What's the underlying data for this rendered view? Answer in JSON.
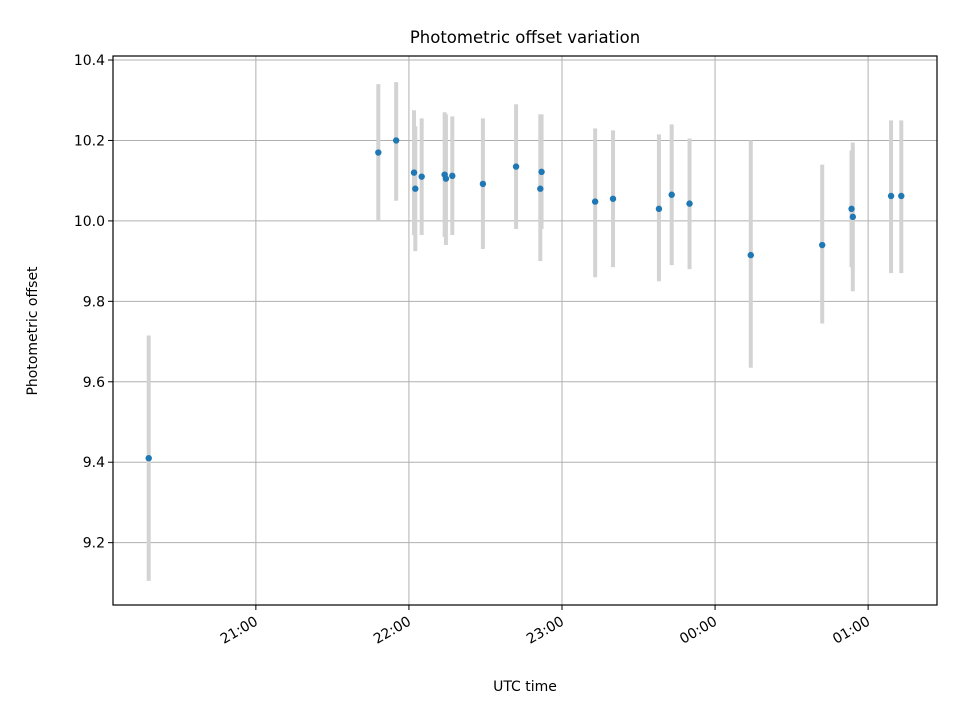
{
  "chart_data": {
    "type": "scatter",
    "title": "Photometric offset variation",
    "xlabel": "UTC time",
    "ylabel": "Photometric offset",
    "xlim": [
      "2000-01-01T20:04",
      "2000-01-02T01:27"
    ],
    "ylim": [
      9.045,
      10.41
    ],
    "x_is_time": true,
    "x_ticks": [
      {
        "label": "21:00",
        "value": "2000-01-01T21:00"
      },
      {
        "label": "22:00",
        "value": "2000-01-01T22:00"
      },
      {
        "label": "23:00",
        "value": "2000-01-01T23:00"
      },
      {
        "label": "00:00",
        "value": "2000-01-02T00:00"
      },
      {
        "label": "01:00",
        "value": "2000-01-02T01:00"
      }
    ],
    "y_ticks": [
      9.2,
      9.4,
      9.6,
      9.8,
      10.0,
      10.2,
      10.4
    ],
    "y_tick_labels": [
      "9.2",
      "9.4",
      "9.6",
      "9.8",
      "10.0",
      "10.2",
      "10.4"
    ],
    "grid": true,
    "legend": "none",
    "colors": {
      "point": "#1f77b4",
      "error_bar": "#d3d3d3",
      "grid": "#b0b0b0"
    },
    "points": [
      {
        "x": "2000-01-01T20:18:00",
        "y": 9.41,
        "y_low": 9.105,
        "y_high": 9.715
      },
      {
        "x": "2000-01-01T21:48:00",
        "y": 10.17,
        "y_low": 10.0,
        "y_high": 10.34
      },
      {
        "x": "2000-01-01T21:55:00",
        "y": 10.2,
        "y_low": 10.05,
        "y_high": 10.345
      },
      {
        "x": "2000-01-01T22:02:00",
        "y": 10.12,
        "y_low": 9.965,
        "y_high": 10.275
      },
      {
        "x": "2000-01-01T22:02:30",
        "y": 10.08,
        "y_low": 9.925,
        "y_high": 10.235
      },
      {
        "x": "2000-01-01T22:05:00",
        "y": 10.11,
        "y_low": 9.965,
        "y_high": 10.255
      },
      {
        "x": "2000-01-01T22:14:00",
        "y": 10.115,
        "y_low": 9.96,
        "y_high": 10.27
      },
      {
        "x": "2000-01-01T22:14:30",
        "y": 10.105,
        "y_low": 9.94,
        "y_high": 10.265
      },
      {
        "x": "2000-01-01T22:17:00",
        "y": 10.112,
        "y_low": 9.965,
        "y_high": 10.26
      },
      {
        "x": "2000-01-01T22:29:00",
        "y": 10.092,
        "y_low": 9.93,
        "y_high": 10.255
      },
      {
        "x": "2000-01-01T22:42:00",
        "y": 10.135,
        "y_low": 9.98,
        "y_high": 10.29
      },
      {
        "x": "2000-01-01T22:51:30",
        "y": 10.08,
        "y_low": 9.9,
        "y_high": 10.265
      },
      {
        "x": "2000-01-01T22:52:00",
        "y": 10.122,
        "y_low": 9.98,
        "y_high": 10.265
      },
      {
        "x": "2000-01-01T23:13:00",
        "y": 10.048,
        "y_low": 9.86,
        "y_high": 10.23
      },
      {
        "x": "2000-01-01T23:20:00",
        "y": 10.055,
        "y_low": 9.885,
        "y_high": 10.225
      },
      {
        "x": "2000-01-01T23:38:00",
        "y": 10.03,
        "y_low": 9.85,
        "y_high": 10.215
      },
      {
        "x": "2000-01-01T23:43:00",
        "y": 10.065,
        "y_low": 9.89,
        "y_high": 10.24
      },
      {
        "x": "2000-01-01T23:50:00",
        "y": 10.043,
        "y_low": 9.88,
        "y_high": 10.205
      },
      {
        "x": "2000-01-02T00:14:00",
        "y": 9.915,
        "y_low": 9.635,
        "y_high": 10.2
      },
      {
        "x": "2000-01-02T00:42:00",
        "y": 9.94,
        "y_low": 9.745,
        "y_high": 10.14
      },
      {
        "x": "2000-01-02T00:53:30",
        "y": 10.03,
        "y_low": 9.885,
        "y_high": 10.175
      },
      {
        "x": "2000-01-02T00:54:00",
        "y": 10.01,
        "y_low": 9.825,
        "y_high": 10.195
      },
      {
        "x": "2000-01-02T01:09:00",
        "y": 10.062,
        "y_low": 9.87,
        "y_high": 10.25
      },
      {
        "x": "2000-01-02T01:13:00",
        "y": 10.062,
        "y_low": 9.87,
        "y_high": 10.25
      }
    ]
  }
}
